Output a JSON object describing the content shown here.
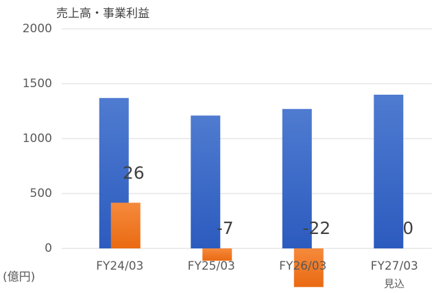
{
  "chart_data": {
    "type": "bar",
    "title": "売上高・事業利益",
    "y_axis_label": "(億円)",
    "annotation": "見込",
    "categories": [
      "FY24/03",
      "FY25/03",
      "FY26/03",
      "FY27/03"
    ],
    "series": [
      {
        "name": "売上高",
        "color": "#3a66c8",
        "values": [
          1370,
          1210,
          1270,
          1400
        ]
      },
      {
        "name": "事業利益",
        "color": "#f07a26",
        "axis": "y2",
        "values": [
          26,
          -7,
          -22,
          0
        ]
      }
    ],
    "ylim": [
      -400,
      2000
    ],
    "yticks": [
      0,
      500,
      1000,
      1500,
      2000
    ],
    "y2lim": [
      -25,
      125
    ],
    "grid": true
  }
}
